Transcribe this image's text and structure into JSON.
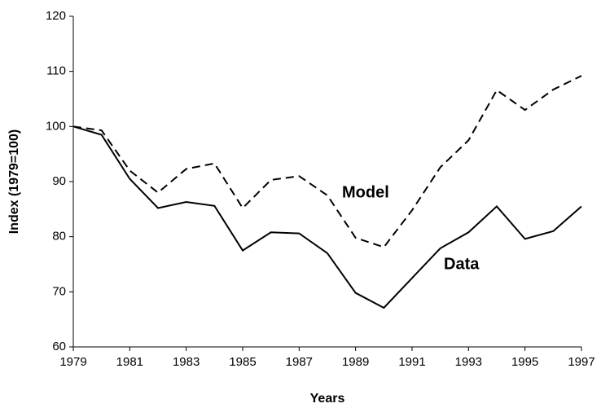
{
  "chart_data": {
    "type": "line",
    "x_label": "Years",
    "y_label": "Index (1979=100)",
    "x": [
      1979,
      1980,
      1981,
      1982,
      1983,
      1984,
      1985,
      1986,
      1987,
      1988,
      1989,
      1990,
      1991,
      1992,
      1993,
      1994,
      1995,
      1996,
      1997
    ],
    "series": [
      {
        "name": "Model",
        "color": "#000000",
        "line_style": "dashed",
        "values": [
          100,
          99.3,
          92,
          88,
          92.3,
          93.3,
          85.2,
          90.3,
          91,
          87.5,
          79.8,
          78.1,
          84.8,
          92.6,
          97.5,
          106.6,
          103,
          106.7,
          109.2
        ]
      },
      {
        "name": "Data",
        "color": "#000000",
        "line_style": "solid",
        "values": [
          100,
          98.5,
          90.5,
          85.2,
          86.3,
          85.6,
          77.5,
          80.8,
          80.6,
          77,
          69.8,
          67.1,
          72.5,
          77.9,
          80.8,
          85.5,
          79.6,
          81,
          85.5
        ]
      }
    ],
    "xlim": [
      1979,
      1997
    ],
    "xticks": [
      1979,
      1981,
      1983,
      1985,
      1987,
      1989,
      1991,
      1993,
      1995,
      1997
    ],
    "ylim": [
      60,
      120
    ],
    "yticks": [
      60,
      70,
      80,
      90,
      100,
      110,
      120
    ],
    "grid": false
  }
}
